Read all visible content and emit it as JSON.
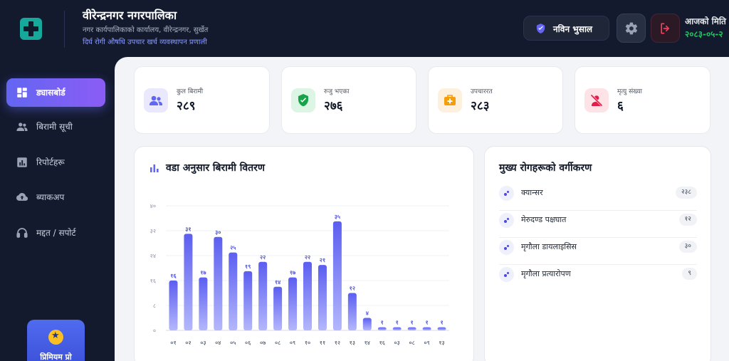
{
  "header": {
    "title": "वीरेन्द्रनगर नगरपालिका",
    "subtitle": "नगर कार्यपालिकाको कार्यालय, वीरेन्द्रनगर, सुर्खेत",
    "system_name": "दिर्घ रोगी औषधि उपचार खर्च व्यवस्थापन प्रणाली",
    "user_name": "नविन भुसाल",
    "date_label": "आजको मिति",
    "date_value": "२०८३-०५-२",
    "colors": {
      "background": "#131a2e",
      "accent": "#6366f1",
      "date": "#22c55e"
    }
  },
  "sidebar": {
    "items": [
      {
        "label": "ड्यासबोर्ड",
        "icon": "dashboard-icon",
        "active": true
      },
      {
        "label": "बिरामी सूची",
        "icon": "people-icon",
        "active": false
      },
      {
        "label": "रिपोर्टहरू",
        "icon": "report-icon",
        "active": false
      },
      {
        "label": "ब्याकअप",
        "icon": "cloud-upload-icon",
        "active": false
      },
      {
        "label": "मद्दत / सपोर्ट",
        "icon": "headset-icon",
        "active": false
      }
    ],
    "premium_label": "प्रिमियम प्रो"
  },
  "stats": [
    {
      "label": "कुल बिरामी",
      "value": "२८९",
      "icon": "people-icon",
      "color": "#6366f1"
    },
    {
      "label": "रुजु भएका",
      "value": "२७६",
      "icon": "verified-shield-icon",
      "color": "#16a34a"
    },
    {
      "label": "उपचाररत",
      "value": "२८३",
      "icon": "medical-bag-icon",
      "color": "#f59e0b"
    },
    {
      "label": "मृत्यु संख्या",
      "value": "६",
      "icon": "person-off-icon",
      "color": "#e11d48"
    }
  ],
  "chart_panel": {
    "title": "वडा अनुसार बिरामी वितरण"
  },
  "chart_data": {
    "type": "bar",
    "categories": [
      "०१",
      "०२",
      "०३",
      "०४",
      "०५",
      "०६",
      "०७",
      "०८",
      "०९",
      "१०",
      "११",
      "१२",
      "१३",
      "१४",
      "१६",
      "०३",
      "०८",
      "०९",
      "१३"
    ],
    "values": [
      16,
      31,
      17,
      30,
      25,
      19,
      22,
      14,
      17,
      22,
      21,
      35,
      12,
      4,
      1,
      1,
      1,
      1,
      1
    ],
    "value_labels": [
      "१६",
      "३१",
      "१७",
      "३०",
      "२५",
      "१९",
      "२२",
      "१४",
      "१७",
      "२२",
      "२१",
      "३५",
      "१२",
      "४",
      "१",
      "१",
      "१",
      "१",
      "१"
    ],
    "y_ticks": [
      0,
      8,
      16,
      24,
      32,
      40
    ],
    "y_tick_labels": [
      "०",
      "८",
      "१६",
      "२४",
      "३२",
      "४०"
    ],
    "ylim": [
      0,
      40
    ],
    "grid": true,
    "bar_color": "#6366f1"
  },
  "diseases_panel": {
    "title": "मुख्य रोगहरूको वर्गीकरण",
    "items": [
      {
        "name": "क्यान्सर",
        "count": "२३८"
      },
      {
        "name": "मेरुदण्ड पक्षघात",
        "count": "१२"
      },
      {
        "name": "मृगौला डायलाइसिस",
        "count": "३०"
      },
      {
        "name": "मृगौला प्रत्यारोपण",
        "count": "९"
      }
    ]
  }
}
